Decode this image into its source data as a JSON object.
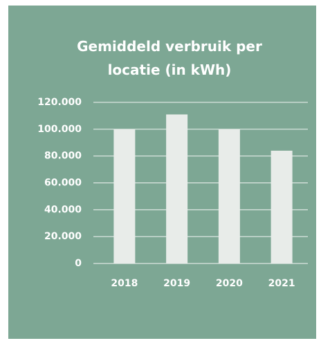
{
  "chart_data": {
    "type": "bar",
    "title": "Gemiddeld verbruik per locatie (in kWh)",
    "categories": [
      "2018",
      "2019",
      "2020",
      "2021"
    ],
    "values": [
      100000,
      111000,
      100000,
      84000
    ],
    "color": "#e8ece9",
    "ylim": [
      0,
      120000
    ],
    "yticks": [
      0,
      {
        "value": 20000,
        "label": "20.000"
      },
      {
        "value": 40000,
        "label": "40.000"
      },
      {
        "value": 60000,
        "label": "60.000"
      },
      {
        "value": 80000,
        "label": "80.000"
      },
      {
        "value": 100000,
        "label": "100.000"
      },
      {
        "value": 120000,
        "label": "120.000"
      }
    ],
    "grid": true
  }
}
